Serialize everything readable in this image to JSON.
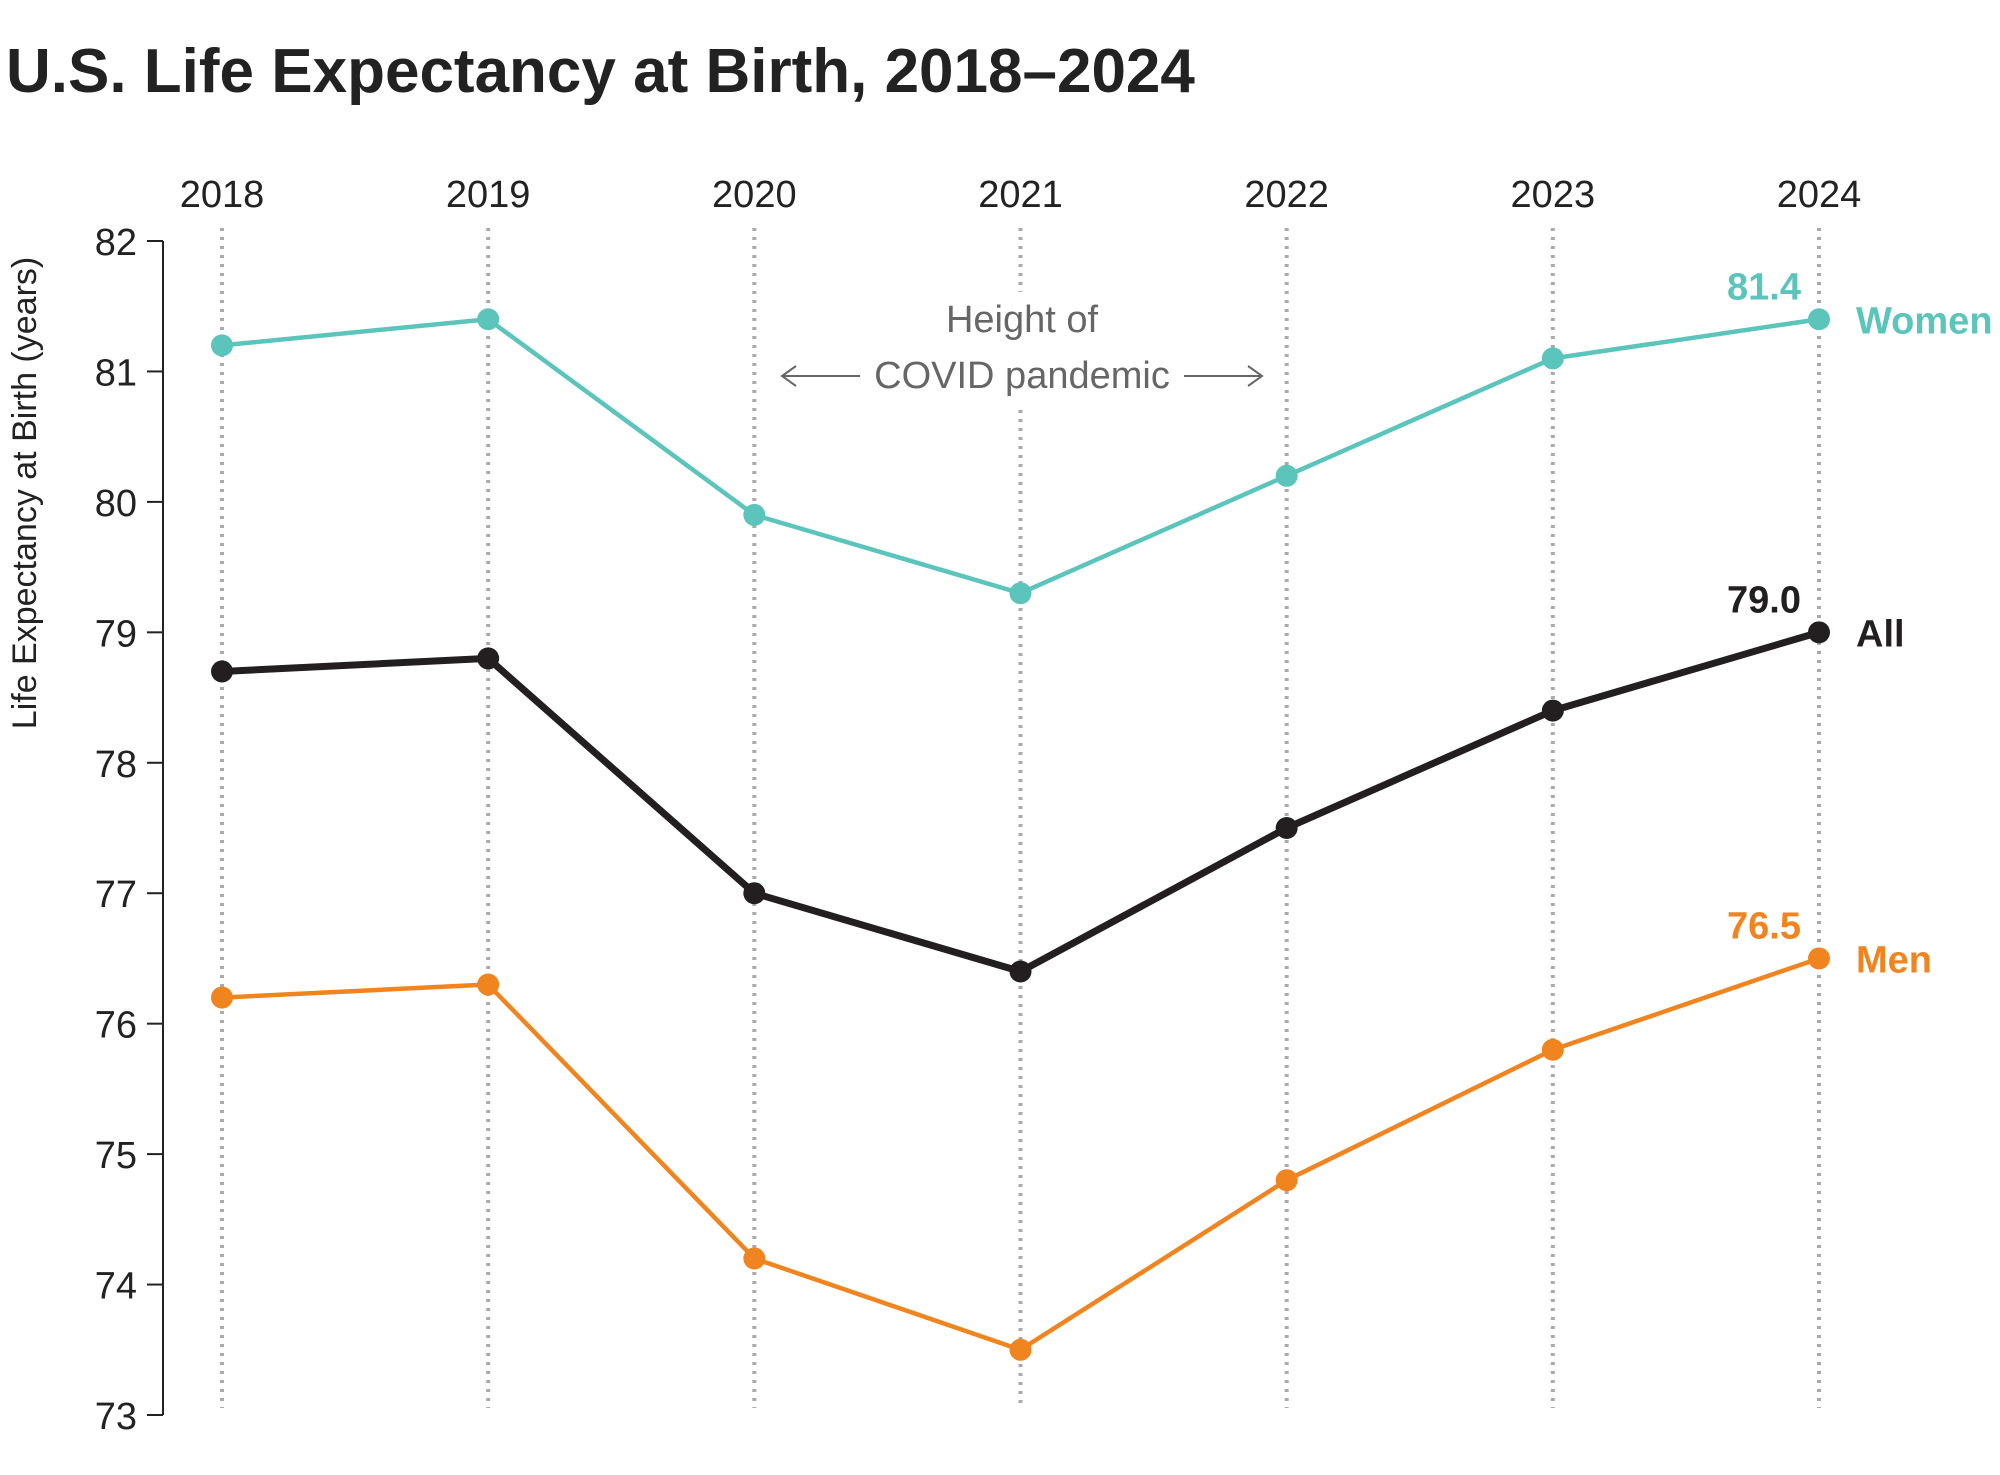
{
  "chart_data": {
    "type": "line",
    "title": "U.S. Life Expectancy at Birth, 2018–2024",
    "y_label": "Life Expectancy at Birth (years)",
    "annotation": [
      "Height of",
      "COVID pandemic"
    ],
    "x": [
      2018,
      2019,
      2020,
      2021,
      2022,
      2023,
      2024
    ],
    "xlim": [
      2018,
      2024
    ],
    "xticks": [
      2018,
      2019,
      2020,
      2021,
      2022,
      2023,
      2024
    ],
    "ylim": [
      73,
      82
    ],
    "yticks": [
      73,
      74,
      75,
      76,
      77,
      78,
      79,
      80,
      81,
      82
    ],
    "grid": true,
    "series": [
      {
        "name": "Women",
        "color": "#5bc4bb",
        "values": [
          81.2,
          81.4,
          79.9,
          79.3,
          80.2,
          81.1,
          81.4
        ],
        "value_labels": [
          null,
          null,
          null,
          null,
          null,
          null,
          "81.4"
        ]
      },
      {
        "name": "All",
        "color": "#231f20",
        "values": [
          78.7,
          78.8,
          77.0,
          76.4,
          77.5,
          78.4,
          79.0
        ],
        "value_labels": [
          null,
          null,
          null,
          null,
          null,
          null,
          "79.0"
        ]
      },
      {
        "name": "Men",
        "color": "#f0841f",
        "values": [
          76.2,
          76.3,
          74.2,
          73.5,
          74.8,
          75.8,
          76.5
        ],
        "value_labels": [
          null,
          null,
          null,
          null,
          null,
          null,
          "76.5"
        ]
      }
    ]
  }
}
